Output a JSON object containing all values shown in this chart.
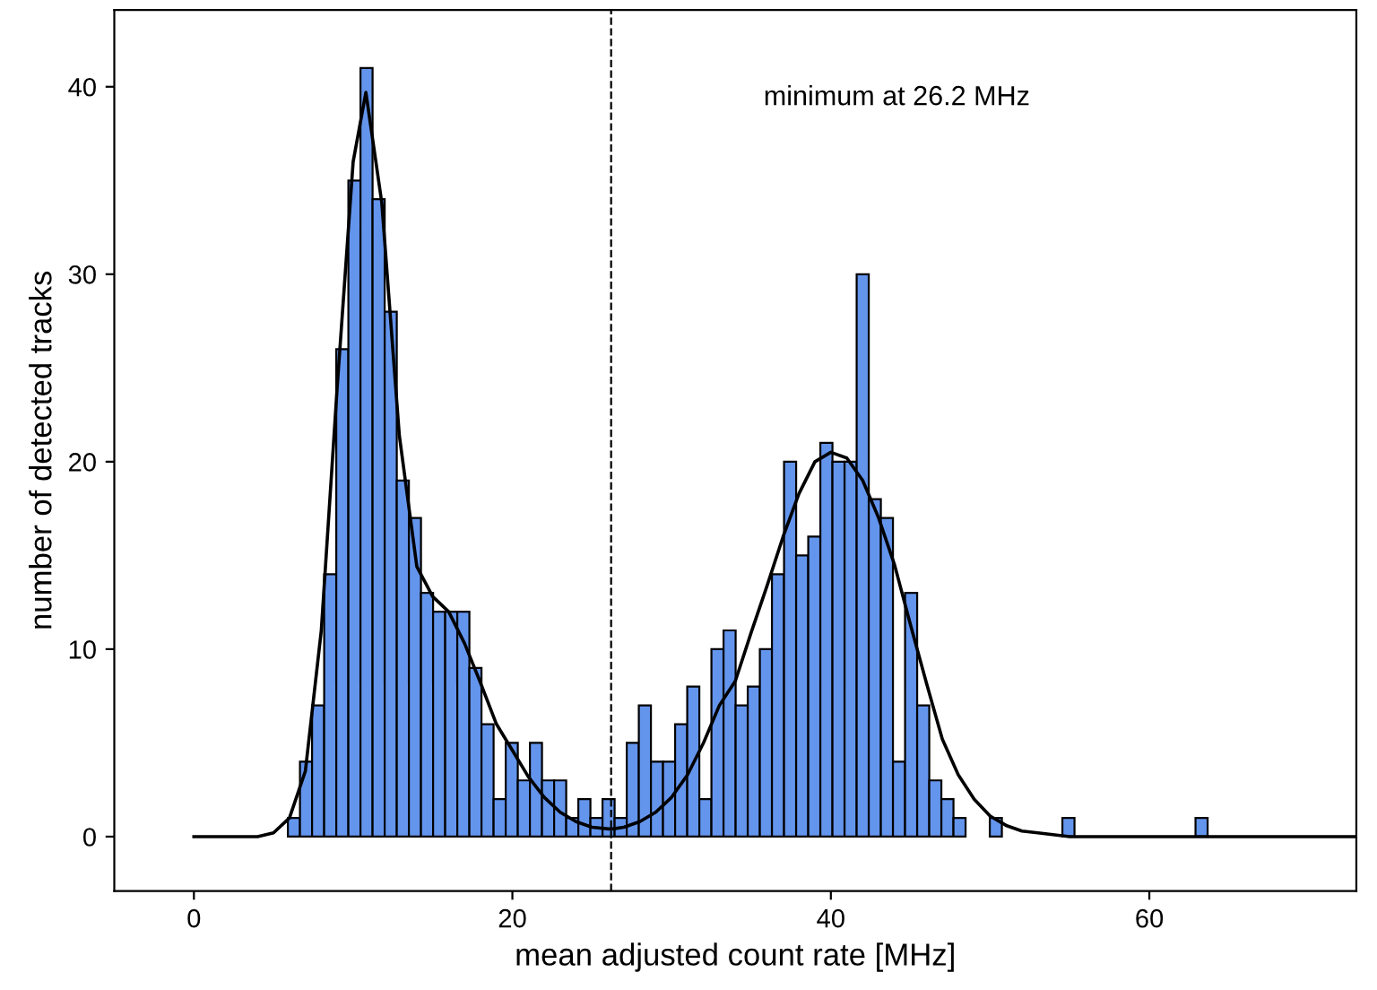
{
  "chart_data": {
    "type": "histogram",
    "xlabel": "mean adjusted count rate [MHz]",
    "ylabel": "number of detected tracks",
    "bins": [
      5.9,
      6.66,
      7.42,
      8.18,
      8.94,
      9.7,
      10.46,
      11.22,
      11.98,
      12.74,
      13.5,
      14.26,
      15.02,
      15.78,
      16.54,
      17.3,
      18.06,
      18.82,
      19.58,
      20.34,
      21.1,
      21.86,
      22.62,
      23.38,
      24.14,
      24.9,
      25.66,
      26.42,
      27.18,
      27.94,
      28.7,
      29.46,
      30.22,
      30.98,
      31.74,
      32.5,
      33.26,
      34.02,
      34.78,
      35.54,
      36.3,
      37.06,
      37.82,
      38.58,
      39.34,
      40.1,
      40.86,
      41.62,
      42.38,
      43.14,
      43.9,
      44.66,
      45.42,
      46.18,
      46.94,
      47.7,
      48.46,
      49.22,
      49.98,
      50.74,
      51.5,
      52.26,
      53.02,
      53.78,
      54.54,
      55.3,
      56.06,
      56.82,
      57.58,
      58.34,
      59.1,
      59.86,
      60.62,
      61.38,
      62.14,
      62.9,
      63.66
    ],
    "values": [
      1,
      4,
      7,
      14,
      26,
      35,
      41,
      34,
      28,
      19,
      17,
      13,
      12,
      12,
      12,
      9,
      6,
      2,
      5,
      3,
      5,
      3,
      3,
      1,
      2,
      1,
      2,
      1,
      5,
      7,
      4,
      4,
      6,
      8,
      2,
      10,
      11,
      7,
      8,
      10,
      14,
      20,
      15,
      16,
      21,
      20,
      20,
      30,
      18,
      17,
      4,
      13,
      7,
      3,
      2,
      1,
      0,
      0,
      1,
      0,
      0,
      0,
      0,
      0,
      1,
      0,
      0,
      0,
      0,
      0,
      0,
      0,
      0,
      0,
      0,
      1
    ],
    "color": "#6495ed",
    "series": [
      {
        "type": "line",
        "color": "#000000",
        "x": [
          0,
          4,
          5,
          6,
          7,
          8,
          9,
          10,
          10.8,
          11.8,
          12.9,
          14,
          15,
          16,
          17,
          18,
          19,
          20,
          21,
          22,
          23,
          24,
          25,
          26.2,
          27,
          28,
          29,
          30,
          31,
          32,
          33,
          34,
          35,
          36,
          37,
          38,
          39,
          40,
          41,
          42,
          43,
          44,
          45,
          46,
          47,
          48,
          49,
          50,
          51,
          52,
          53,
          55,
          58,
          73
        ],
        "values": [
          0,
          0,
          0.2,
          1,
          3.5,
          11,
          24,
          36,
          39.7,
          33.8,
          21.4,
          14.4,
          12.8,
          12,
          10.3,
          8.2,
          6,
          4.6,
          3.2,
          2.1,
          1.3,
          0.8,
          0.5,
          0.4,
          0.5,
          0.8,
          1.3,
          2.1,
          3.3,
          5,
          7,
          8.3,
          10.9,
          13.4,
          16,
          18.3,
          20,
          20.5,
          20.2,
          19,
          17,
          14.5,
          11.3,
          8.2,
          5.2,
          3.3,
          2,
          1.1,
          0.6,
          0.3,
          0.2,
          0,
          0,
          0
        ]
      }
    ],
    "ref_lines": [
      {
        "axis": "x",
        "value": 26.2,
        "line_style": "dashed",
        "color": "#000000"
      }
    ],
    "annotations": [
      "minimum at 26.2 MHz"
    ],
    "xlim": [
      -5,
      73
    ],
    "ylim": [
      -2.9,
      44.1
    ],
    "xticks": [
      0,
      20,
      40,
      60
    ],
    "yticks": [
      0,
      10,
      20,
      30,
      40
    ],
    "grid": false,
    "legend": false
  }
}
